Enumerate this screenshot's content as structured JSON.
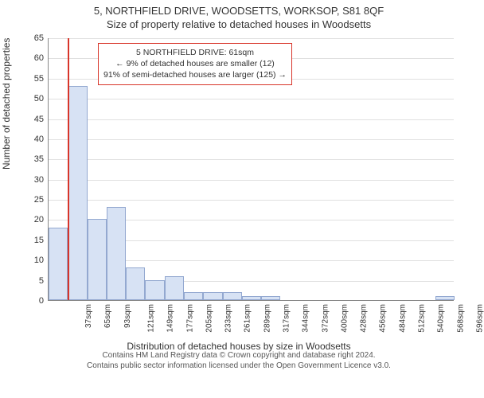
{
  "titles": {
    "line1": "5, NORTHFIELD DRIVE, WOODSETTS, WORKSOP, S81 8QF",
    "line2": "Size of property relative to detached houses in Woodsetts"
  },
  "axis": {
    "ylabel": "Number of detached properties",
    "xlabel": "Distribution of detached houses by size in Woodsetts",
    "ymin": 0,
    "ymax": 65,
    "ytick_step": 5,
    "grid_color": "#e0e0e0",
    "axis_color": "#888888",
    "tick_fontsize": 11
  },
  "chart": {
    "type": "histogram",
    "bar_fill": "#d7e2f4",
    "bar_border": "#93a8d0",
    "background": "#ffffff",
    "categories": [
      "37sqm",
      "65sqm",
      "93sqm",
      "121sqm",
      "149sqm",
      "177sqm",
      "205sqm",
      "233sqm",
      "261sqm",
      "289sqm",
      "317sqm",
      "344sqm",
      "372sqm",
      "400sqm",
      "428sqm",
      "456sqm",
      "484sqm",
      "512sqm",
      "540sqm",
      "568sqm",
      "596sqm"
    ],
    "values": [
      18,
      53,
      20,
      23,
      8,
      5,
      6,
      2,
      2,
      2,
      1,
      1,
      0,
      0,
      0,
      0,
      0,
      0,
      0,
      0,
      1
    ]
  },
  "marker": {
    "color": "#d8352a",
    "position_category_index": 1,
    "position_fraction_into_bin": 0.0
  },
  "infobox": {
    "line1": "5 NORTHFIELD DRIVE: 61sqm",
    "line2": "← 9% of detached houses are smaller (12)",
    "line3": "91% of semi-detached houses are larger (125) →",
    "border_color": "#d8352a",
    "background": "#ffffff",
    "fontsize": 10.5
  },
  "footer": {
    "line1": "Contains HM Land Registry data © Crown copyright and database right 2024.",
    "line2": "Contains public sector information licensed under the Open Government Licence v3.0."
  }
}
